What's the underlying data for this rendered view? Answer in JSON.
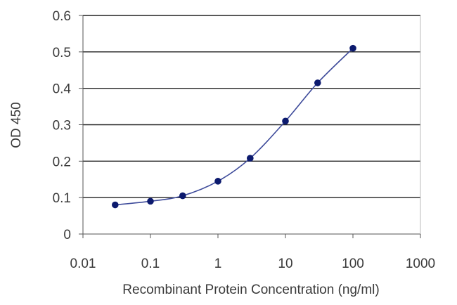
{
  "chart_data": {
    "type": "line",
    "xlabel": "Recombinant Protein Concentration (ng/ml)",
    "ylabel": "OD 450",
    "xscale": "log",
    "xlim": [
      0.01,
      1000
    ],
    "ylim": [
      0,
      0.6
    ],
    "x_ticks": [
      "0.01",
      "0.1",
      "1",
      "10",
      "100",
      "1000"
    ],
    "y_ticks": [
      "0",
      "0.1",
      "0.2",
      "0.3",
      "0.4",
      "0.5",
      "0.6"
    ],
    "grid": "horizontal",
    "legend": "none",
    "series": [
      {
        "x": [
          0.03,
          0.1,
          0.3,
          1,
          3,
          10,
          30,
          100
        ],
        "y": [
          0.08,
          0.09,
          0.105,
          0.145,
          0.208,
          0.31,
          0.415,
          0.51
        ]
      }
    ],
    "colors": {
      "line": "#3d4a9a",
      "marker": "#0c1a6e",
      "grid": "#222222",
      "axis": "#555555"
    }
  }
}
